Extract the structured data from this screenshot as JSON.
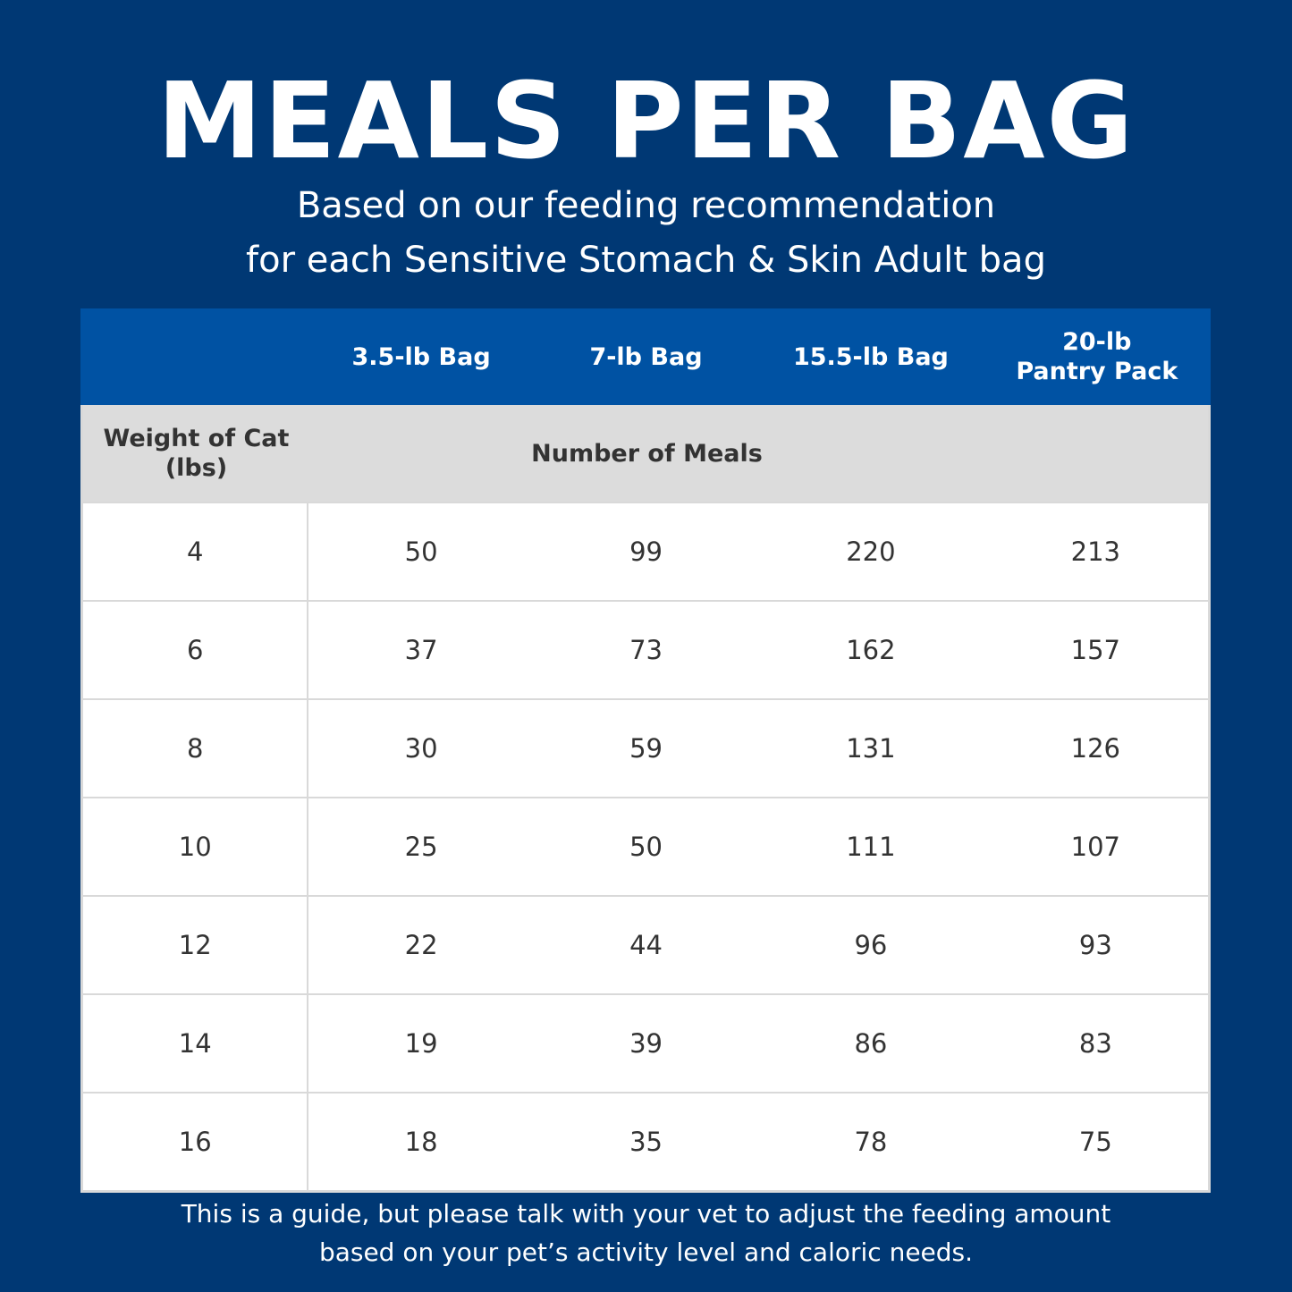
{
  "title": "MEALS PER BAG",
  "subtitle_lines": [
    "Based on our feeding recommendation",
    "for each Sensitive Stomach & Skin Adult bag"
  ],
  "table": {
    "columns": [
      "",
      "3.5-lb Bag",
      "7-lb Bag",
      "15.5-lb Bag",
      [
        "20-lb",
        "Pantry Pack"
      ]
    ],
    "row_header": [
      "Weight of Cat",
      "(lbs)"
    ],
    "group_label": "Number of Meals",
    "rows": [
      [
        "4",
        "50",
        "99",
        "220",
        "213"
      ],
      [
        "6",
        "37",
        "73",
        "162",
        "157"
      ],
      [
        "8",
        "30",
        "59",
        "131",
        "126"
      ],
      [
        "10",
        "25",
        "50",
        "111",
        "107"
      ],
      [
        "12",
        "22",
        "44",
        "96",
        "93"
      ],
      [
        "14",
        "19",
        "39",
        "86",
        "83"
      ],
      [
        "16",
        "18",
        "35",
        "78",
        "75"
      ]
    ]
  },
  "footer_lines": [
    "This is a guide, but please talk with your vet to adjust the feeding amount",
    "based on your pet’s activity level and caloric needs."
  ],
  "colors": {
    "background": "#003874",
    "header": "#0052a3",
    "subheader": "#dcdcdc"
  }
}
